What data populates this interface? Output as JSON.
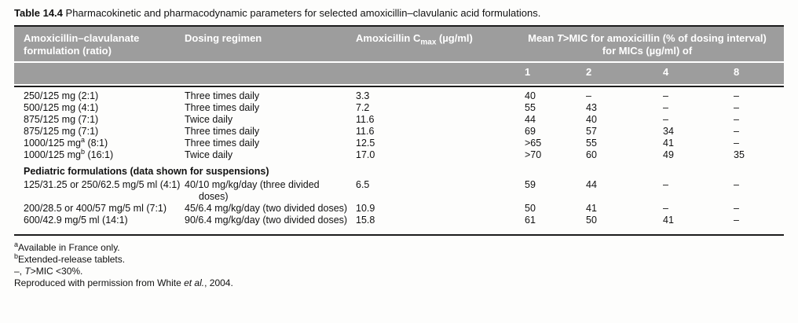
{
  "colors": {
    "header_bg": "#9d9d9d",
    "header_text": "#ffffff",
    "rule": "#1c1c1c"
  },
  "title": {
    "label": "Table 14.4",
    "text": "Pharmacokinetic and pharmacodynamic parameters for selected amoxicillin–clavulanic acid formulations."
  },
  "header": {
    "formulation": "Amoxicillin–clavulanate formulation (ratio)",
    "dosing": "Dosing regimen",
    "cmax_pre": "Amoxicillin C",
    "cmax_sub": "max",
    "cmax_post": " (µg/ml)",
    "tmic_pre": "Mean ",
    "tmic_T": "T",
    "tmic_post": ">MIC for amoxicillin (% of dosing interval) for MICs (µg/ml) of",
    "mic_labels": [
      "1",
      "2",
      "4",
      "8"
    ]
  },
  "rows": [
    {
      "f_pre": "250/125 mg (2:1)",
      "f_sup": "",
      "f_post": "",
      "dosing": "Three times daily",
      "cmax": "3.3",
      "m1": "40",
      "m2": "–",
      "m4": "–",
      "m8": "–"
    },
    {
      "f_pre": "500/125 mg (4:1)",
      "f_sup": "",
      "f_post": "",
      "dosing": "Three times daily",
      "cmax": "7.2",
      "m1": "55",
      "m2": "43",
      "m4": "–",
      "m8": "–"
    },
    {
      "f_pre": "875/125 mg (7:1)",
      "f_sup": "",
      "f_post": "",
      "dosing": "Twice daily",
      "cmax": "11.6",
      "m1": "44",
      "m2": "40",
      "m4": "–",
      "m8": "–"
    },
    {
      "f_pre": "875/125 mg (7:1)",
      "f_sup": "",
      "f_post": "",
      "dosing": "Three times daily",
      "cmax": "11.6",
      "m1": "69",
      "m2": "57",
      "m4": "34",
      "m8": "–"
    },
    {
      "f_pre": "1000/125 mg",
      "f_sup": "a",
      "f_post": " (8:1)",
      "dosing": "Three times daily",
      "cmax": "12.5",
      "m1": ">65",
      "m2": "55",
      "m4": "41",
      "m8": "–"
    },
    {
      "f_pre": "1000/125 mg",
      "f_sup": "b",
      "f_post": " (16:1)",
      "dosing": "Twice daily",
      "cmax": "17.0",
      "m1": ">70",
      "m2": "60",
      "m4": "49",
      "m8": "35"
    },
    {
      "f_pre": "125/31.25 or 250/62.5 mg/5 ml (4:1)",
      "f_sup": "",
      "f_post": "",
      "dosing": "40/10 mg/kg/day (three divided doses)",
      "cmax": "6.5",
      "m1": "59",
      "m2": "44",
      "m4": "–",
      "m8": "–"
    },
    {
      "f_pre": "200/28.5 or 400/57 mg/5 ml (7:1)",
      "f_sup": "",
      "f_post": "",
      "dosing": "45/6.4 mg/kg/day (two divided doses)",
      "cmax": "10.9",
      "m1": "50",
      "m2": "41",
      "m4": "–",
      "m8": "–"
    },
    {
      "f_pre": "600/42.9 mg/5 ml (14:1)",
      "f_sup": "",
      "f_post": "",
      "dosing": "90/6.4 mg/kg/day (two divided doses)",
      "cmax": "15.8",
      "m1": "61",
      "m2": "50",
      "m4": "41",
      "m8": "–"
    }
  ],
  "section_header": "Pediatric formulations (data shown for suspensions)",
  "footnotes": {
    "a_sup": "a",
    "a_text": "Available in France only.",
    "b_sup": "b",
    "b_text": "Extended-release tablets.",
    "dash_pre": "–, ",
    "dash_T": "T",
    "dash_post": ">MIC <30%.",
    "source_pre": "Reproduced with permission from White ",
    "source_italic": "et al.",
    "source_post": ", 2004."
  }
}
